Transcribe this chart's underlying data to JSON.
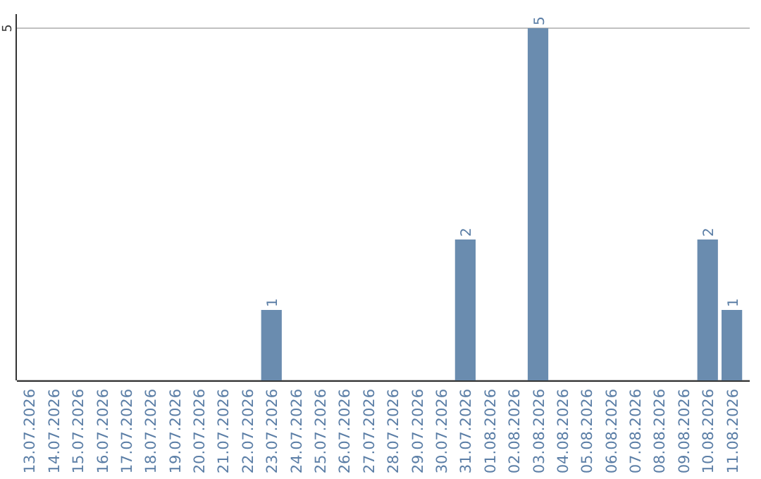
{
  "chart_data": {
    "type": "bar",
    "categories": [
      "13.07.2026",
      "14.07.2026",
      "15.07.2026",
      "16.07.2026",
      "17.07.2026",
      "18.07.2026",
      "19.07.2026",
      "20.07.2026",
      "21.07.2026",
      "22.07.2026",
      "23.07.2026",
      "24.07.2026",
      "25.07.2026",
      "26.07.2026",
      "27.07.2026",
      "28.07.2026",
      "29.07.2026",
      "30.07.2026",
      "31.07.2026",
      "01.08.2026",
      "02.08.2026",
      "03.08.2026",
      "04.08.2026",
      "05.08.2026",
      "06.08.2026",
      "07.08.2026",
      "08.08.2026",
      "09.08.2026",
      "10.08.2026",
      "11.08.2026"
    ],
    "values": [
      0,
      0,
      0,
      0,
      0,
      0,
      0,
      0,
      0,
      0,
      1,
      0,
      0,
      0,
      0,
      0,
      0,
      0,
      2,
      0,
      0,
      5,
      0,
      0,
      0,
      0,
      0,
      0,
      2,
      1
    ],
    "value_labels": [
      null,
      null,
      null,
      null,
      null,
      null,
      null,
      null,
      null,
      null,
      "1",
      null,
      null,
      null,
      null,
      null,
      null,
      null,
      "2",
      null,
      null,
      "5",
      null,
      null,
      null,
      null,
      null,
      null,
      "2",
      "1"
    ],
    "color": "#6a8caf",
    "ylim": [
      0,
      5
    ],
    "yticks": [
      {
        "value": 0,
        "label": null
      },
      5
    ],
    "grid": "y"
  }
}
